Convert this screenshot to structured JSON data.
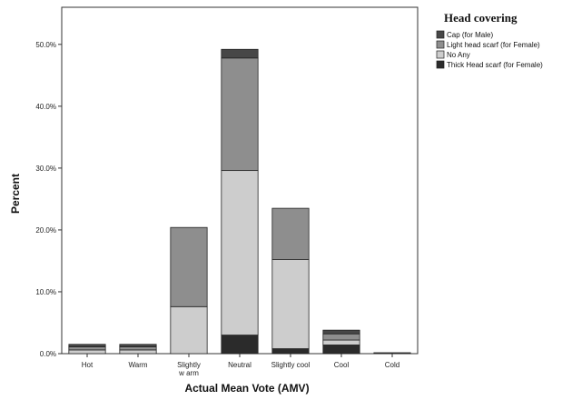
{
  "chart_data": {
    "type": "bar",
    "stacked": true,
    "categories": [
      "Hot",
      "Warm",
      "Slightly\nw arm",
      "Neutral",
      "Slightly cool",
      "Cool",
      "Cold"
    ],
    "xlabel": "Actual Mean Vote (AMV)",
    "ylabel": "Percent",
    "ylim": [
      0,
      56
    ],
    "yticks": [
      "0.0%",
      "10.0%",
      "20.0%",
      "30.0%",
      "40.0%",
      "50.0%"
    ],
    "ytick_values": [
      0,
      10,
      20,
      30,
      40,
      50
    ],
    "legend_title": "Head covering",
    "legend_position": "top-right",
    "grid": false,
    "series": [
      {
        "name": "Thick Head scarf (for Female)",
        "color": "#2b2b2b",
        "values": [
          0,
          0,
          0,
          3.0,
          0.8,
          1.4,
          0
        ]
      },
      {
        "name": "No Any",
        "color": "#cdcdcd",
        "values": [
          0.6,
          0.6,
          7.6,
          26.6,
          14.4,
          0.8,
          0
        ]
      },
      {
        "name": "Light head scarf (for Female)",
        "color": "#8e8e8e",
        "values": [
          0.5,
          0.5,
          12.8,
          18.2,
          8.3,
          1.0,
          0
        ]
      },
      {
        "name": "Cap (for Male)",
        "color": "#474747",
        "values": [
          0.4,
          0.4,
          0,
          1.4,
          0,
          0.6,
          0.15
        ]
      }
    ],
    "legend_order": [
      "Cap (for Male)",
      "Light head scarf (for Female)",
      "No Any",
      "Thick Head scarf (for Female)"
    ]
  }
}
